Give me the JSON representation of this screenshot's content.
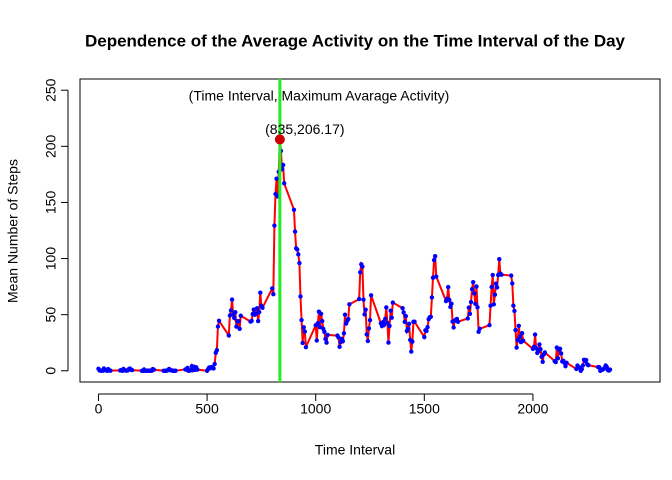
{
  "chart_data": {
    "type": "line",
    "title": "Dependence of the Average Activity on the Time Interval of the Day",
    "xlabel": "Time Interval",
    "ylabel": "Mean Number of Steps",
    "annotation": "(Time Interval, Maximum Avarage Activity)",
    "max_point": {
      "x": 835,
      "y": 206.17,
      "label": "(835,206.17)",
      "color": "#cc0000",
      "line_color": "#22ee22",
      "label_color": "#8b0000"
    },
    "annotation_color": "#0000ff",
    "line_color": "#ff0000",
    "point_color": "#0000ff",
    "xlim": [
      -85,
      2585
    ],
    "ylim": [
      -10,
      260
    ],
    "xticks": [
      0,
      500,
      1000,
      1500,
      2000
    ],
    "yticks": [
      0,
      50,
      100,
      150,
      200,
      250
    ],
    "x": [
      0,
      5,
      10,
      15,
      20,
      25,
      30,
      35,
      40,
      45,
      50,
      55,
      100,
      105,
      110,
      115,
      120,
      125,
      130,
      135,
      140,
      145,
      150,
      155,
      200,
      205,
      210,
      215,
      220,
      225,
      230,
      235,
      240,
      245,
      250,
      255,
      300,
      305,
      310,
      315,
      320,
      325,
      330,
      335,
      340,
      345,
      350,
      355,
      400,
      405,
      410,
      415,
      420,
      425,
      430,
      435,
      440,
      445,
      450,
      455,
      500,
      505,
      510,
      515,
      520,
      525,
      530,
      535,
      540,
      545,
      550,
      555,
      600,
      605,
      610,
      615,
      620,
      625,
      630,
      635,
      640,
      645,
      650,
      655,
      700,
      705,
      710,
      715,
      720,
      725,
      730,
      735,
      740,
      745,
      750,
      755,
      800,
      805,
      810,
      815,
      820,
      825,
      830,
      835,
      840,
      845,
      850,
      855,
      900,
      905,
      910,
      915,
      920,
      925,
      930,
      935,
      940,
      945,
      950,
      955,
      1000,
      1005,
      1010,
      1015,
      1020,
      1025,
      1030,
      1035,
      1040,
      1045,
      1050,
      1055,
      1100,
      1105,
      1110,
      1115,
      1120,
      1125,
      1130,
      1135,
      1140,
      1145,
      1150,
      1155,
      1200,
      1205,
      1210,
      1215,
      1220,
      1225,
      1230,
      1235,
      1240,
      1245,
      1250,
      1255,
      1300,
      1305,
      1310,
      1315,
      1320,
      1325,
      1330,
      1335,
      1340,
      1345,
      1350,
      1355,
      1400,
      1405,
      1410,
      1415,
      1420,
      1425,
      1430,
      1435,
      1440,
      1445,
      1450,
      1455,
      1500,
      1505,
      1510,
      1515,
      1520,
      1525,
      1530,
      1535,
      1540,
      1545,
      1550,
      1555,
      1600,
      1605,
      1610,
      1615,
      1620,
      1625,
      1630,
      1635,
      1640,
      1645,
      1650,
      1655,
      1700,
      1705,
      1710,
      1715,
      1720,
      1725,
      1730,
      1735,
      1740,
      1745,
      1750,
      1755,
      1800,
      1805,
      1810,
      1815,
      1820,
      1825,
      1830,
      1835,
      1840,
      1845,
      1850,
      1855,
      1900,
      1905,
      1910,
      1915,
      1920,
      1925,
      1930,
      1935,
      1940,
      1945,
      1950,
      1955,
      2000,
      2005,
      2010,
      2015,
      2020,
      2025,
      2030,
      2035,
      2040,
      2045,
      2050,
      2055,
      2100,
      2105,
      2110,
      2115,
      2120,
      2125,
      2130,
      2135,
      2140,
      2145,
      2150,
      2155,
      2200,
      2205,
      2210,
      2215,
      2220,
      2225,
      2230,
      2235,
      2240,
      2245,
      2250,
      2255,
      2300,
      2305,
      2310,
      2315,
      2320,
      2325,
      2330,
      2335,
      2340,
      2345,
      2350,
      2355
    ],
    "values": [
      1.72,
      0.34,
      0.13,
      0.15,
      0.08,
      2.09,
      0.53,
      0.87,
      0,
      1.47,
      0.3,
      0.13,
      0.32,
      0.68,
      0,
      1.62,
      0.58,
      0.25,
      0.13,
      0.32,
      1.58,
      1.98,
      0.87,
      0.58,
      0,
      0,
      1.13,
      0,
      0,
      0.13,
      0,
      0.23,
      0,
      0,
      1.55,
      0.94,
      0,
      0,
      0,
      0.21,
      0.62,
      1.62,
      0.58,
      0.49,
      0.08,
      0,
      0,
      0.08,
      1.19,
      0.94,
      2.57,
      0,
      0.34,
      0.36,
      4.11,
      0.66,
      3.49,
      0.83,
      3.11,
      1.11,
      0,
      1.57,
      3,
      2.25,
      3.32,
      2.96,
      2.09,
      6.06,
      16.02,
      18.34,
      39.45,
      44.49,
      31.49,
      49.26,
      53.77,
      63.45,
      49.96,
      47.08,
      52.15,
      39.34,
      44.02,
      44.17,
      37.36,
      49.04,
      43.81,
      44.38,
      50.51,
      54.51,
      49.92,
      50.98,
      55.68,
      44.32,
      52.26,
      69.55,
      57.85,
      56.15,
      73.38,
      68.21,
      129.43,
      157.53,
      171.15,
      155.4,
      177.3,
      206.17,
      195.92,
      179.57,
      183.4,
      167.02,
      143.45,
      124.04,
      109.11,
      108.11,
      103.72,
      95.96,
      66.21,
      45.23,
      24.79,
      38.75,
      34.98,
      21.06,
      40.57,
      26.98,
      42.42,
      52.66,
      38.92,
      50.79,
      44.28,
      37.42,
      34.7,
      28.34,
      25.09,
      31.94,
      31.36,
      29.68,
      21.32,
      25.55,
      28.38,
      26.47,
      33.43,
      49.98,
      42.04,
      44.6,
      46.04,
      59.19,
      63.87,
      87.7,
      94.85,
      92.77,
      63.4,
      50.17,
      54.47,
      32.42,
      26.53,
      37.74,
      45.06,
      67.28,
      42.34,
      39.88,
      43.26,
      40.98,
      46.25,
      56.43,
      42.75,
      25.13,
      39.96,
      53.55,
      47.32,
      60.81,
      55.75,
      51.96,
      43.58,
      48.7,
      35.47,
      37.55,
      41.85,
      27.51,
      17.11,
      26.08,
      43.62,
      43.77,
      30.02,
      36.08,
      35.49,
      38.85,
      45.96,
      47.75,
      48.13,
      65.32,
      82.91,
      98.66,
      102.11,
      83.96,
      62.13,
      64.13,
      74.55,
      63.17,
      56.91,
      59.77,
      43.87,
      38.57,
      44.66,
      45.45,
      46.21,
      43.68,
      46.62,
      56.3,
      50.72,
      61.23,
      72.72,
      78.94,
      68.94,
      59.66,
      75.09,
      56.51,
      34.77,
      37.45,
      40.68,
      58.02,
      74.7,
      85.32,
      59.26,
      67.77,
      77.7,
      74.25,
      85.34,
      99.45,
      86.58,
      85.6,
      84.87,
      77.83,
      58.04,
      53.36,
      36.33,
      20.72,
      27.4,
      40.02,
      30.21,
      25.55,
      33.53,
      26.81,
      19.55,
      21.32,
      32.3,
      20.15,
      15.94,
      17.23,
      23.45,
      19.25,
      12.45,
      8.02,
      14.66,
      16.3,
      8.68,
      7.79,
      20.72,
      11.09,
      18.89,
      19.55,
      15.45,
      8.32,
      8.89,
      7.08,
      4.17,
      7.08,
      1.6,
      4.6,
      3.3,
      2.8,
      0,
      1.5,
      4.7,
      9.8,
      8.7,
      9.5,
      5.8,
      5,
      3.3,
      3.2,
      0,
      0.8,
      1,
      1.6,
      2.6,
      4.7,
      3.3,
      0.6,
      0.2,
      1.1
    ]
  }
}
